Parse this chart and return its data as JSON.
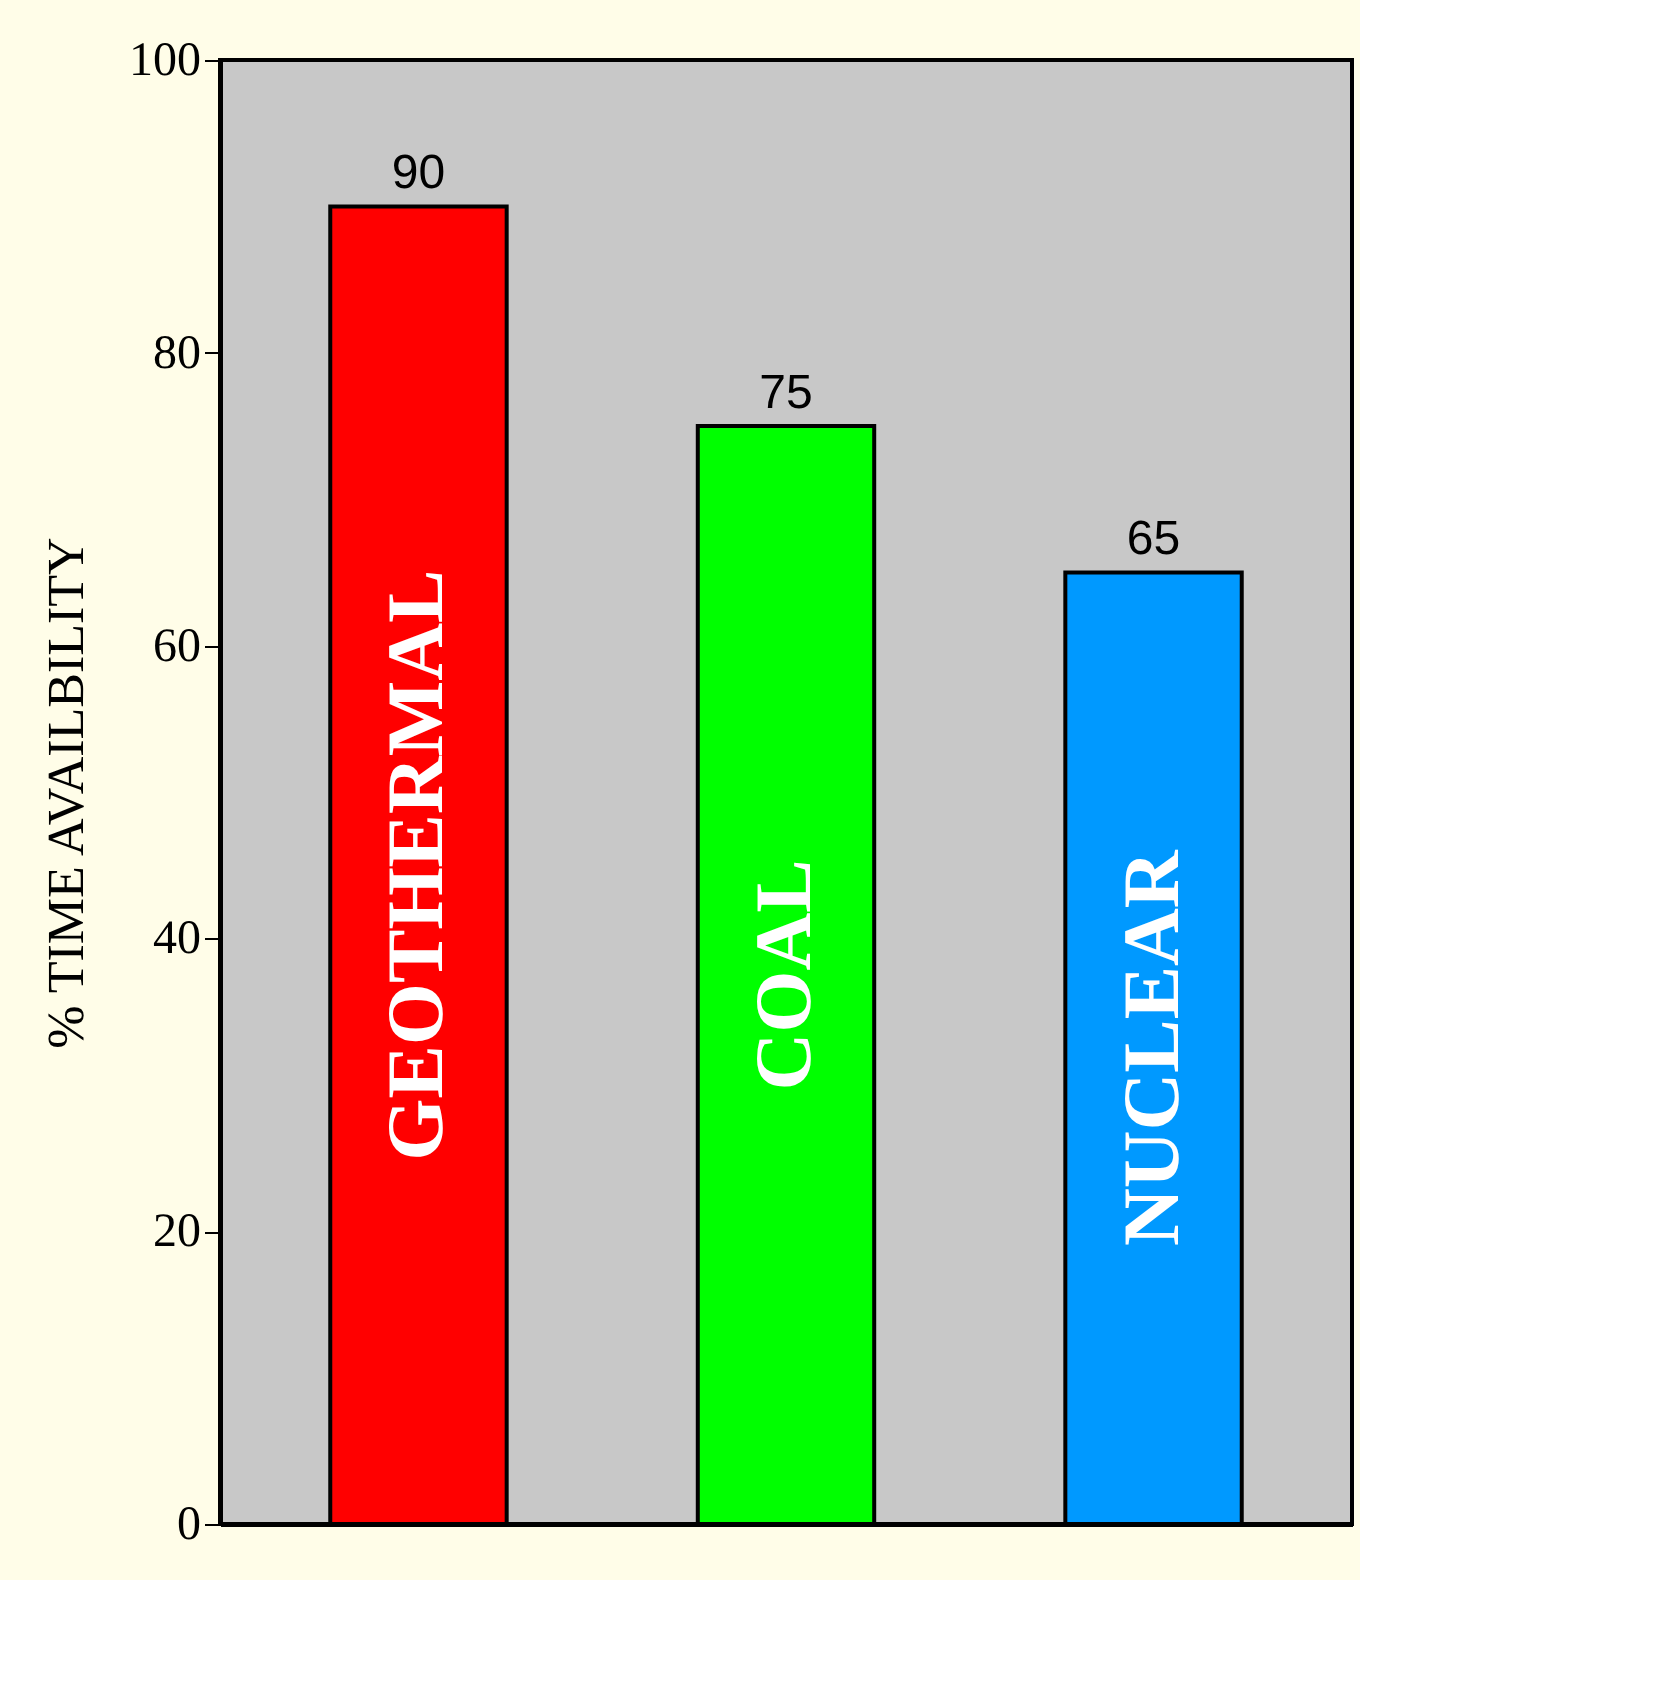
{
  "chart_data": {
    "type": "bar",
    "ylabel": "% TIME AVAILBILITY",
    "categories": [
      "GEOTHERMAL",
      "COAL",
      "NUCLEAR"
    ],
    "values": [
      90,
      75,
      65
    ],
    "colors": [
      "#ff0000",
      "#00ff00",
      "#0099ff"
    ],
    "ylim": [
      0,
      100
    ],
    "yticks": [
      0,
      20,
      40,
      60,
      80,
      100
    ],
    "data_labels": true,
    "grid": false,
    "legend": false
  }
}
